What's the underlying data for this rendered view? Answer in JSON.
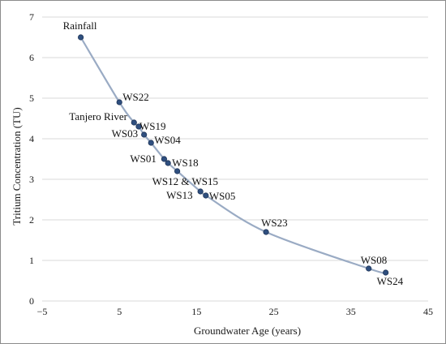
{
  "chart_data": {
    "type": "scatter",
    "title": "",
    "xlabel": "Groundwater Age (years)",
    "ylabel": "Tritium Concentration (TU)",
    "xlim": [
      -5,
      45
    ],
    "ylim": [
      0,
      7
    ],
    "xticks": [
      -5,
      5,
      15,
      25,
      35,
      45
    ],
    "yticks": [
      0,
      1,
      2,
      3,
      4,
      5,
      6,
      7
    ],
    "grid": "horizontal",
    "legend": "none",
    "trendline": "smooth",
    "colors": {
      "marker": "#2f4f7f",
      "curve": "#9aabc4",
      "grid": "#d9d9d9"
    },
    "points": [
      {
        "label": "Rainfall",
        "x": 0,
        "y": 6.5
      },
      {
        "label": "WS22",
        "x": 5,
        "y": 4.9
      },
      {
        "label": "Tanjero River",
        "x": 6.9,
        "y": 4.4
      },
      {
        "label": "WS19",
        "x": 7.5,
        "y": 4.3
      },
      {
        "label": "WS03",
        "x": 8.2,
        "y": 4.1
      },
      {
        "label": "WS04",
        "x": 9.1,
        "y": 3.9
      },
      {
        "label": "WS01",
        "x": 10.8,
        "y": 3.5
      },
      {
        "label": "WS18",
        "x": 11.3,
        "y": 3.4
      },
      {
        "label": "WS12 & WS15",
        "x": 12.5,
        "y": 3.2
      },
      {
        "label": "WS13",
        "x": 15.5,
        "y": 2.7
      },
      {
        "label": "WS05",
        "x": 16.2,
        "y": 2.6
      },
      {
        "label": "WS23",
        "x": 24,
        "y": 1.7
      },
      {
        "label": "WS08",
        "x": 37.3,
        "y": 0.8
      },
      {
        "label": "WS24",
        "x": 39.5,
        "y": 0.7
      }
    ]
  }
}
